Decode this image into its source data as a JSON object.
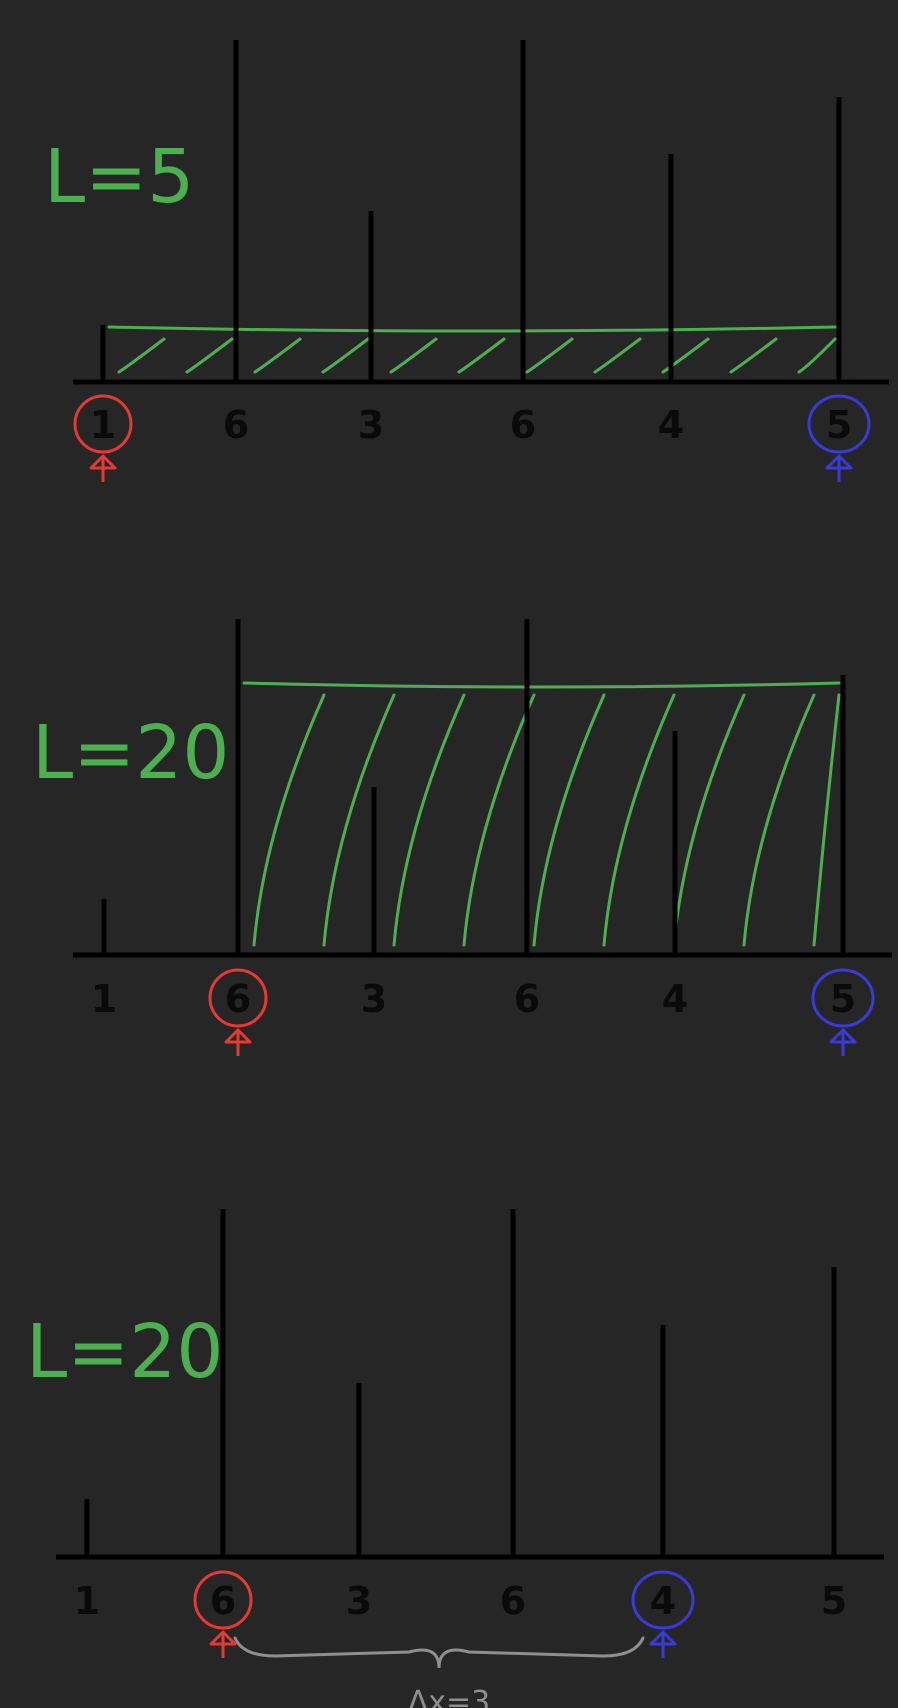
{
  "heights": [
    1,
    6,
    3,
    6,
    4,
    5
  ],
  "colors": {
    "background": "#262626",
    "bar": "#000000",
    "area": "#4caf50",
    "left_pointer": "#e53935",
    "right_pointer": "#3a3ad8",
    "brace": "#8f8f8f"
  },
  "panels": [
    {
      "area_label": "L=5",
      "left_index": 0,
      "right_index": 5,
      "area_level": 1,
      "shaded": true,
      "gap_label": ""
    },
    {
      "area_label": "L=20",
      "left_index": 1,
      "right_index": 5,
      "area_level": 5,
      "shaded": true,
      "gap_label": ""
    },
    {
      "area_label": "L=20",
      "left_index": 1,
      "right_index": 4,
      "area_level": 0,
      "shaded": false,
      "gap_label": "Δx=3"
    }
  ]
}
